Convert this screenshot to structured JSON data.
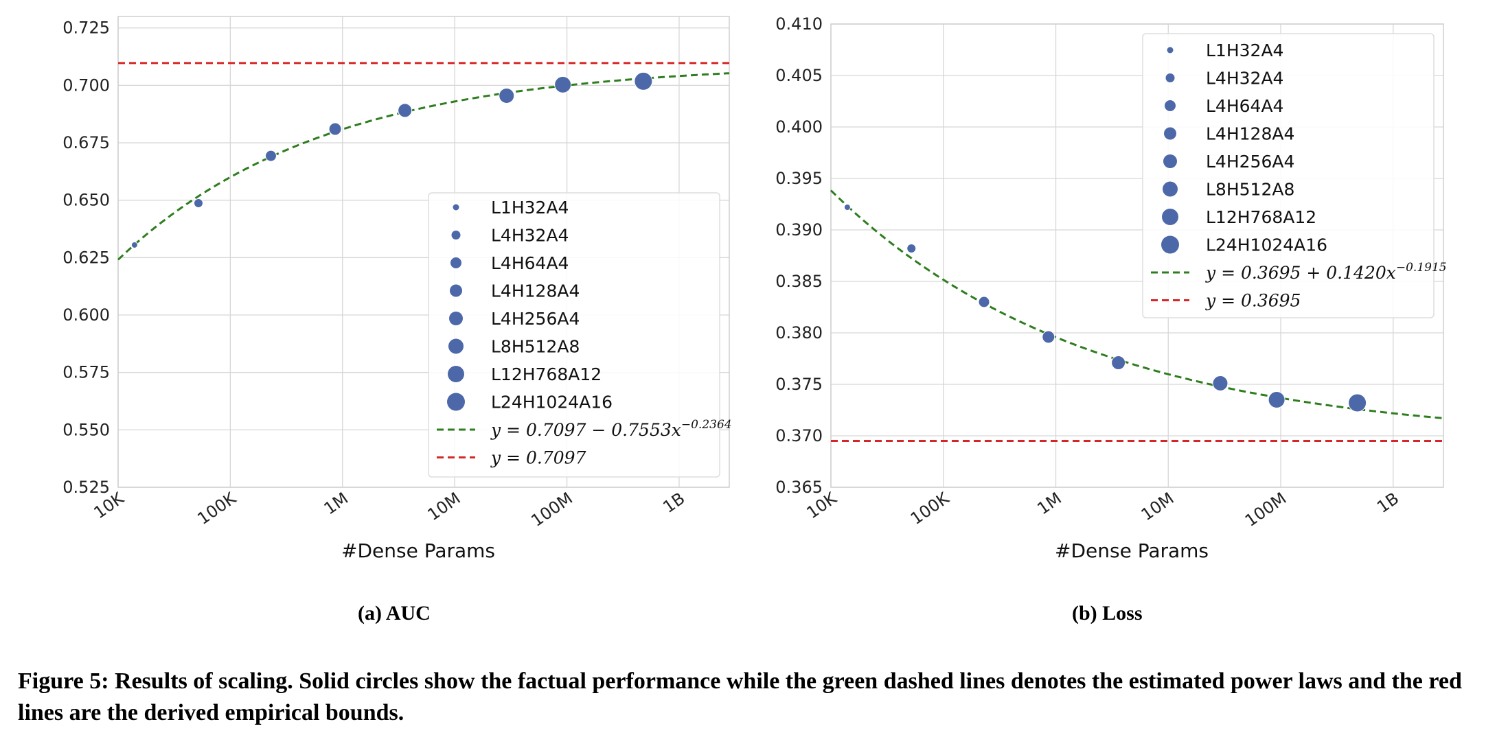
{
  "chart_data": [
    {
      "type": "scatter",
      "subcaption": "(a) AUC",
      "xlabel": "#Dense Params",
      "ylabel": "",
      "x_scale": "log",
      "xlim": [
        10000,
        2800000000
      ],
      "ylim": [
        0.525,
        0.73
      ],
      "x_ticks": [
        {
          "value": 10000,
          "label": "10K"
        },
        {
          "value": 100000,
          "label": "100K"
        },
        {
          "value": 1000000,
          "label": "1M"
        },
        {
          "value": 10000000,
          "label": "10M"
        },
        {
          "value": 100000000,
          "label": "100M"
        },
        {
          "value": 1000000000,
          "label": "1B"
        }
      ],
      "y_ticks": [
        {
          "value": 0.525,
          "label": "0.525"
        },
        {
          "value": 0.55,
          "label": "0.550"
        },
        {
          "value": 0.575,
          "label": "0.575"
        },
        {
          "value": 0.6,
          "label": "0.600"
        },
        {
          "value": 0.625,
          "label": "0.625"
        },
        {
          "value": 0.65,
          "label": "0.650"
        },
        {
          "value": 0.675,
          "label": "0.675"
        },
        {
          "value": 0.7,
          "label": "0.700"
        },
        {
          "value": 0.725,
          "label": "0.725"
        }
      ],
      "grid": true,
      "legend_position": "lower-right",
      "series": [
        {
          "name": "L1H32A4",
          "x": 14000,
          "y": 0.6305
        },
        {
          "name": "L4H32A4",
          "x": 52000,
          "y": 0.6487
        },
        {
          "name": "L4H64A4",
          "x": 230000,
          "y": 0.6693
        },
        {
          "name": "L4H128A4",
          "x": 860000,
          "y": 0.681
        },
        {
          "name": "L4H256A4",
          "x": 3600000,
          "y": 0.6891
        },
        {
          "name": "L8H512A8",
          "x": 29000000,
          "y": 0.6955
        },
        {
          "name": "L12H768A12",
          "x": 92000000,
          "y": 0.7003
        },
        {
          "name": "L24H1024A16",
          "x": 480000000,
          "y": 0.7018
        }
      ],
      "fit": {
        "a": 0.7097,
        "b": -0.7553,
        "c": -0.2364,
        "label": "y = 0.7097 − 0.7553x",
        "exponent": "−0.2364",
        "color": "#2e7d1e"
      },
      "bound": {
        "y": 0.7097,
        "label": "y = 0.7097",
        "color": "#d62728"
      }
    },
    {
      "type": "scatter",
      "subcaption": "(b) Loss",
      "xlabel": "#Dense Params",
      "ylabel": "",
      "x_scale": "log",
      "xlim": [
        10000,
        2800000000
      ],
      "ylim": [
        0.365,
        0.41
      ],
      "x_ticks": [
        {
          "value": 10000,
          "label": "10K"
        },
        {
          "value": 100000,
          "label": "100K"
        },
        {
          "value": 1000000,
          "label": "1M"
        },
        {
          "value": 10000000,
          "label": "10M"
        },
        {
          "value": 100000000,
          "label": "100M"
        },
        {
          "value": 1000000000,
          "label": "1B"
        }
      ],
      "y_ticks": [
        {
          "value": 0.365,
          "label": "0.365"
        },
        {
          "value": 0.37,
          "label": "0.370"
        },
        {
          "value": 0.375,
          "label": "0.375"
        },
        {
          "value": 0.38,
          "label": "0.380"
        },
        {
          "value": 0.385,
          "label": "0.385"
        },
        {
          "value": 0.39,
          "label": "0.390"
        },
        {
          "value": 0.395,
          "label": "0.395"
        },
        {
          "value": 0.4,
          "label": "0.400"
        },
        {
          "value": 0.405,
          "label": "0.405"
        },
        {
          "value": 0.41,
          "label": "0.410"
        }
      ],
      "grid": true,
      "legend_position": "upper-right",
      "series": [
        {
          "name": "L1H32A4",
          "x": 14000,
          "y": 0.3922
        },
        {
          "name": "L4H32A4",
          "x": 52000,
          "y": 0.3882
        },
        {
          "name": "L4H64A4",
          "x": 230000,
          "y": 0.383
        },
        {
          "name": "L4H128A4",
          "x": 860000,
          "y": 0.3796
        },
        {
          "name": "L4H256A4",
          "x": 3600000,
          "y": 0.3771
        },
        {
          "name": "L8H512A8",
          "x": 29000000,
          "y": 0.3751
        },
        {
          "name": "L12H768A12",
          "x": 92000000,
          "y": 0.3735
        },
        {
          "name": "L24H1024A16",
          "x": 480000000,
          "y": 0.3732
        }
      ],
      "fit": {
        "a": 0.3695,
        "b": 0.142,
        "c": -0.1915,
        "label": "y = 0.3695 + 0.1420x",
        "exponent": "−0.1915",
        "color": "#2e7d1e"
      },
      "bound": {
        "y": 0.3695,
        "label": "y = 0.3695",
        "color": "#d62728"
      }
    }
  ],
  "marker_color": "#4c68a8",
  "caption": "Figure 5: Results of scaling. Solid circles show the factual performance while the green dashed lines denotes the estimated power laws and the red lines are the derived empirical bounds."
}
